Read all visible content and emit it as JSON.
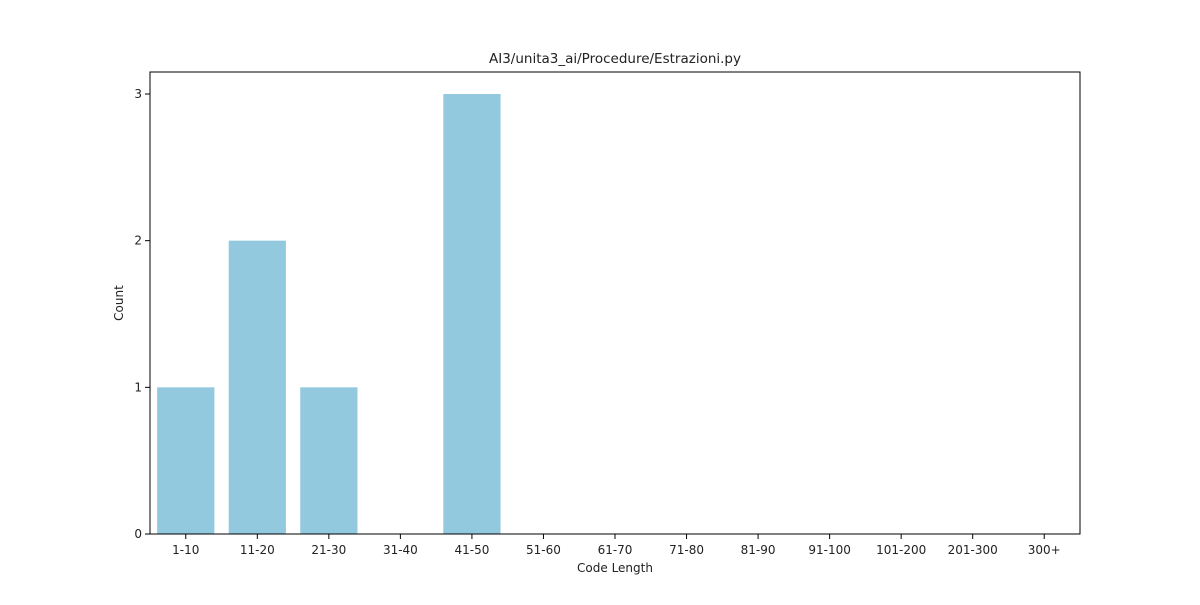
{
  "chart_data": {
    "type": "bar",
    "title": "AI3/unita3_ai/Procedure/Estrazioni.py",
    "xlabel": "Code Length",
    "ylabel": "Count",
    "categories": [
      "1-10",
      "11-20",
      "21-30",
      "31-40",
      "41-50",
      "51-60",
      "61-70",
      "71-80",
      "81-90",
      "91-100",
      "101-200",
      "201-300",
      "300+"
    ],
    "values": [
      1,
      2,
      1,
      0,
      3,
      0,
      0,
      0,
      0,
      0,
      0,
      0,
      0
    ],
    "ylim": [
      0,
      3.15
    ],
    "yticks": [
      "0",
      "1",
      "2",
      "3"
    ],
    "bar_color": "#92c9df",
    "grid": false,
    "legend": "none"
  }
}
